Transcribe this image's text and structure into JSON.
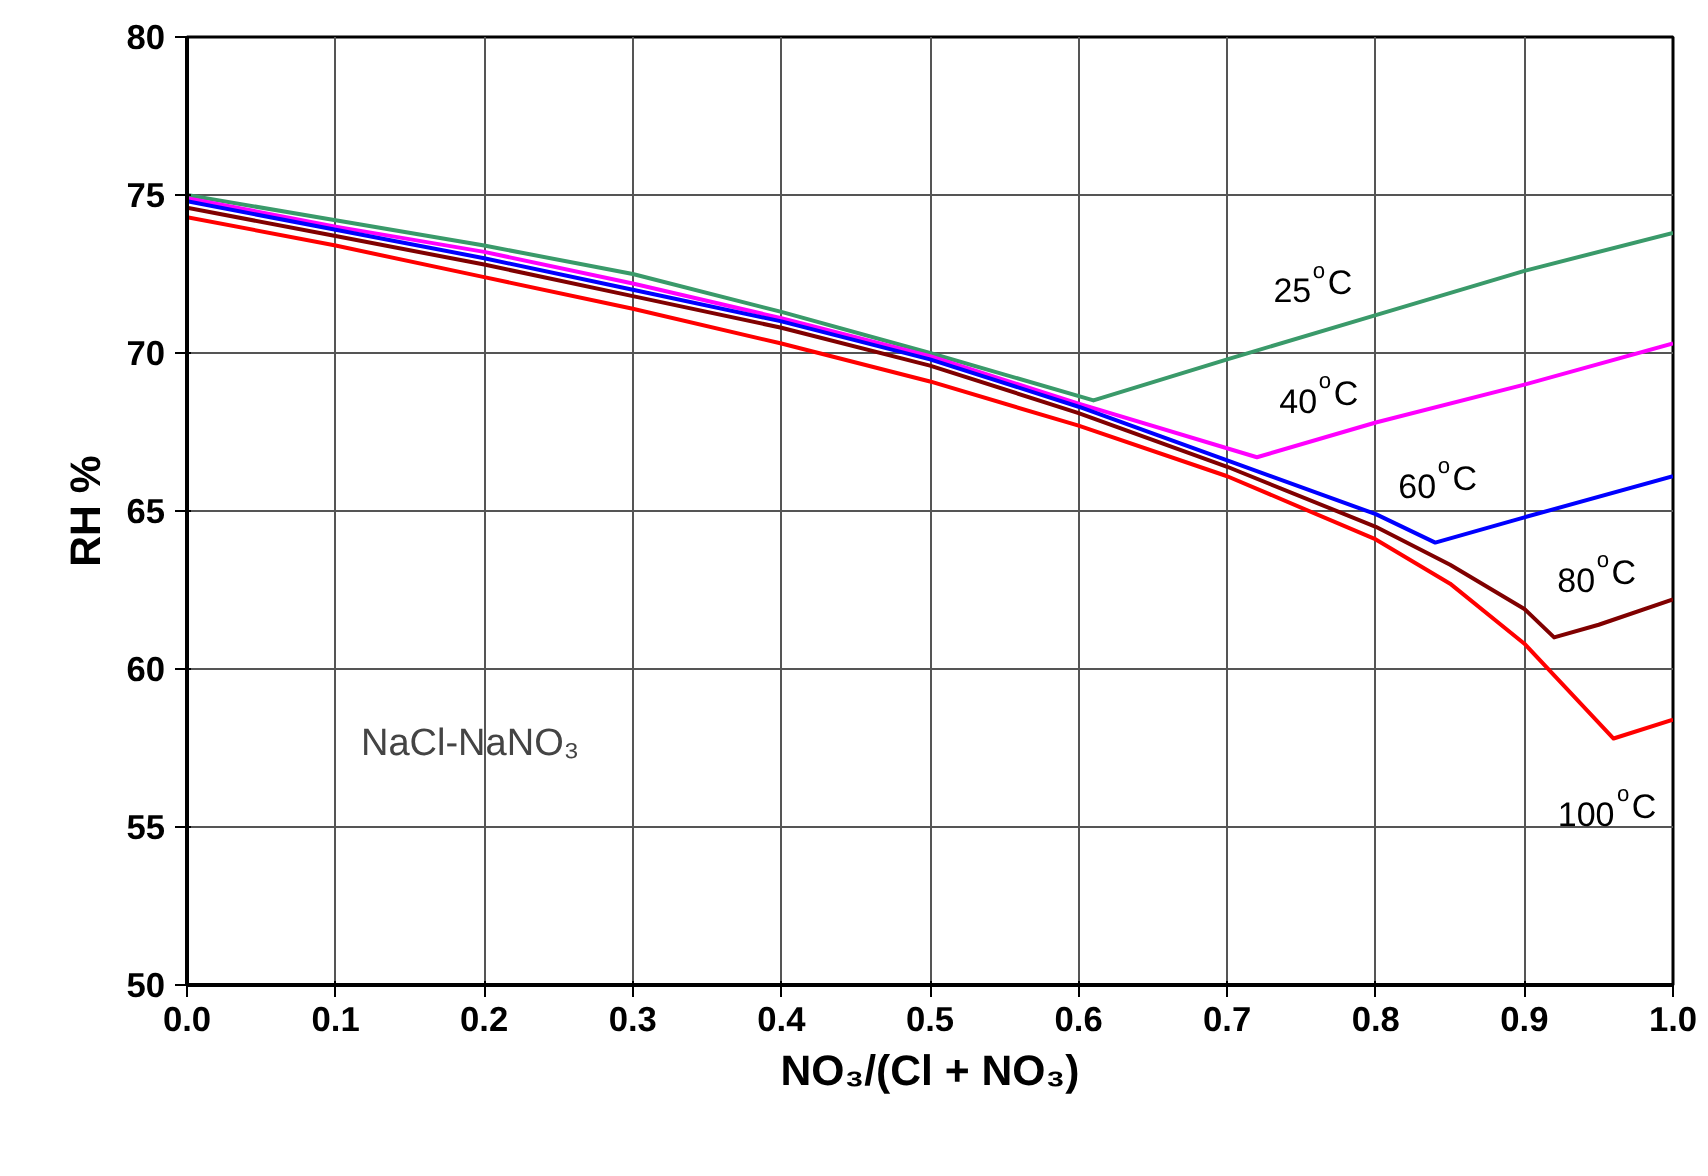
{
  "chart_data": {
    "type": "line",
    "xlabel": "NO₃/(Cl + NO₃)",
    "ylabel": "RH %",
    "xlim": [
      0,
      1
    ],
    "ylim": [
      50,
      80
    ],
    "xticks": [
      {
        "value": 0,
        "label": "0.0"
      },
      0.1,
      0.2,
      0.3,
      0.4,
      0.5,
      0.6,
      0.7,
      0.8,
      0.9,
      {
        "value": 1,
        "label": "1.0"
      }
    ],
    "yticks": [
      50,
      55,
      60,
      65,
      70,
      75,
      80
    ],
    "grid": true,
    "legend": false,
    "marker": "none",
    "line_style": "solid",
    "series": [
      {
        "name": "25$^{o}$C",
        "color": "#3a9a6a",
        "x": [
          0,
          0.1,
          0.2,
          0.3,
          0.4,
          0.5,
          0.61,
          0.7,
          0.8,
          0.9,
          1.0
        ],
        "values": [
          75.0,
          74.2,
          73.4,
          72.5,
          71.3,
          70.0,
          68.5,
          69.8,
          71.2,
          72.6,
          73.8
        ]
      },
      {
        "name": "40$^{o}$C",
        "color": "#ff00ff",
        "x": [
          0,
          0.1,
          0.2,
          0.3,
          0.4,
          0.5,
          0.6,
          0.72,
          0.8,
          0.9,
          1.0
        ],
        "values": [
          74.9,
          74.0,
          73.2,
          72.2,
          71.1,
          69.9,
          68.4,
          66.7,
          67.8,
          69.0,
          70.3
        ]
      },
      {
        "name": "60$^{o}$C",
        "color": "#0000ff",
        "x": [
          0,
          0.1,
          0.2,
          0.3,
          0.4,
          0.5,
          0.6,
          0.7,
          0.8,
          0.84,
          0.9,
          1.0
        ],
        "values": [
          74.8,
          73.9,
          73.0,
          72.0,
          71.0,
          69.8,
          68.3,
          66.6,
          64.9,
          64.0,
          64.8,
          66.1
        ]
      },
      {
        "name": "80$^{o}$C",
        "color": "#800000",
        "x": [
          0,
          0.1,
          0.2,
          0.3,
          0.4,
          0.5,
          0.6,
          0.7,
          0.8,
          0.85,
          0.9,
          0.92,
          0.95,
          1.0
        ],
        "values": [
          74.6,
          73.7,
          72.8,
          71.8,
          70.8,
          69.6,
          68.1,
          66.4,
          64.5,
          63.3,
          61.9,
          61.0,
          61.4,
          62.2
        ]
      },
      {
        "name": "100$^{o}$C",
        "color": "#ff0000",
        "x": [
          0,
          0.1,
          0.2,
          0.3,
          0.4,
          0.5,
          0.6,
          0.7,
          0.8,
          0.85,
          0.9,
          0.93,
          0.96,
          1.0
        ],
        "values": [
          74.3,
          73.4,
          72.4,
          71.4,
          70.3,
          69.1,
          67.7,
          66.1,
          64.1,
          62.7,
          60.8,
          59.3,
          57.8,
          58.4
        ]
      }
    ],
    "annotations": [
      "NaCl-NaNO₃"
    ]
  }
}
